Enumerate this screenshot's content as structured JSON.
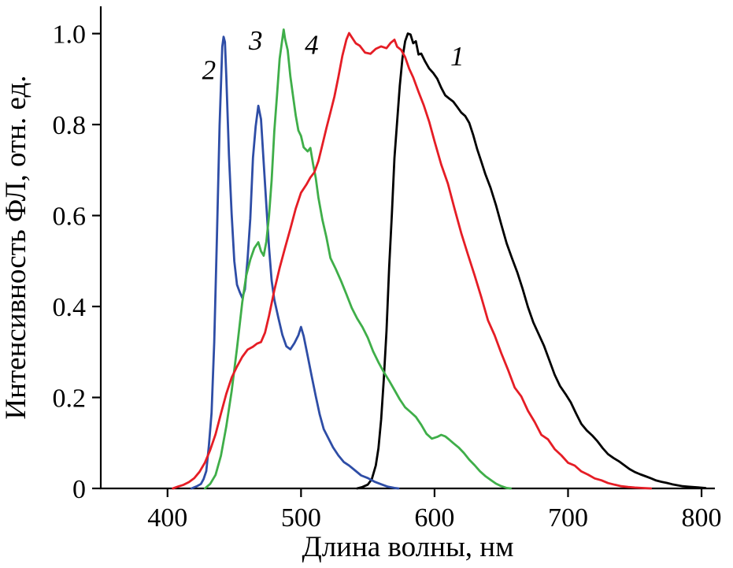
{
  "figure": {
    "description": "Photoluminescence spectra figure with four numbered curves",
    "background": "#ffffff",
    "axis_color": "#000000"
  },
  "chart_data": {
    "type": "line",
    "title": "",
    "xlabel": "Длина волны, нм",
    "ylabel": "Интенсивность ФЛ, отн. ед.",
    "xlim": [
      350,
      810
    ],
    "ylim": [
      0,
      1.06
    ],
    "grid": false,
    "legend": "inline italic numbers near curve peaks",
    "x_ticks": [
      400,
      500,
      600,
      700,
      800
    ],
    "x_tick_labels": [
      "400",
      "500",
      "600",
      "700",
      "800"
    ],
    "y_ticks": [
      0,
      0.2,
      0.4,
      0.6,
      0.8,
      1.0
    ],
    "y_tick_labels": [
      "0",
      "0.2",
      "0.4",
      "0.6",
      "0.8",
      "1.0"
    ],
    "series": [
      {
        "name": "1",
        "color": "#000000",
        "label": "1",
        "label_pos": [
          617,
          0.93
        ],
        "points": [
          [
            542,
            0
          ],
          [
            546,
            0.003
          ],
          [
            550,
            0.008
          ],
          [
            553,
            0.02
          ],
          [
            556,
            0.05
          ],
          [
            558,
            0.09
          ],
          [
            560,
            0.15
          ],
          [
            562,
            0.24
          ],
          [
            564,
            0.35
          ],
          [
            566,
            0.48
          ],
          [
            568,
            0.61
          ],
          [
            570,
            0.72
          ],
          [
            572,
            0.81
          ],
          [
            574,
            0.885
          ],
          [
            576,
            0.945
          ],
          [
            578,
            0.985
          ],
          [
            580,
            1.0
          ],
          [
            582,
            0.995
          ],
          [
            584,
            0.985
          ],
          [
            586,
            0.975
          ],
          [
            588,
            0.962
          ],
          [
            590,
            0.95
          ],
          [
            593,
            0.936
          ],
          [
            596,
            0.922
          ],
          [
            599,
            0.908
          ],
          [
            602,
            0.896
          ],
          [
            605,
            0.884
          ],
          [
            608,
            0.872
          ],
          [
            611,
            0.861
          ],
          [
            614,
            0.851
          ],
          [
            617,
            0.842
          ],
          [
            620,
            0.83
          ],
          [
            623,
            0.815
          ],
          [
            626,
            0.795
          ],
          [
            629,
            0.772
          ],
          [
            632,
            0.746
          ],
          [
            635,
            0.718
          ],
          [
            638,
            0.69
          ],
          [
            642,
            0.653
          ],
          [
            646,
            0.615
          ],
          [
            650,
            0.578
          ],
          [
            654,
            0.54
          ],
          [
            658,
            0.503
          ],
          [
            662,
            0.467
          ],
          [
            666,
            0.432
          ],
          [
            670,
            0.398
          ],
          [
            674,
            0.366
          ],
          [
            678,
            0.335
          ],
          [
            682,
            0.305
          ],
          [
            686,
            0.277
          ],
          [
            690,
            0.251
          ],
          [
            694,
            0.226
          ],
          [
            698,
            0.203
          ],
          [
            702,
            0.182
          ],
          [
            706,
            0.162
          ],
          [
            710,
            0.144
          ],
          [
            714,
            0.128
          ],
          [
            718,
            0.113
          ],
          [
            722,
            0.1
          ],
          [
            726,
            0.088
          ],
          [
            730,
            0.077
          ],
          [
            734,
            0.067
          ],
          [
            738,
            0.058
          ],
          [
            742,
            0.05
          ],
          [
            746,
            0.043
          ],
          [
            750,
            0.037
          ],
          [
            754,
            0.031
          ],
          [
            758,
            0.026
          ],
          [
            762,
            0.022
          ],
          [
            766,
            0.018
          ],
          [
            770,
            0.015
          ],
          [
            774,
            0.012
          ],
          [
            778,
            0.009
          ],
          [
            782,
            0.007
          ],
          [
            786,
            0.005
          ],
          [
            790,
            0.004
          ],
          [
            794,
            0.003
          ],
          [
            798,
            0.002
          ],
          [
            803,
            0.001
          ]
        ]
      },
      {
        "name": "2",
        "color": "#2e4da6",
        "label": "2",
        "label_pos": [
          431,
          0.9
        ],
        "points": [
          [
            418,
            0
          ],
          [
            422,
            0.005
          ],
          [
            425,
            0.01
          ],
          [
            427,
            0.02
          ],
          [
            429,
            0.04
          ],
          [
            431,
            0.09
          ],
          [
            433,
            0.17
          ],
          [
            435,
            0.32
          ],
          [
            437,
            0.55
          ],
          [
            439,
            0.8
          ],
          [
            441,
            0.97
          ],
          [
            442,
            1.0
          ],
          [
            443,
            0.98
          ],
          [
            444,
            0.9
          ],
          [
            446,
            0.74
          ],
          [
            448,
            0.6
          ],
          [
            450,
            0.5
          ],
          [
            452,
            0.45
          ],
          [
            454,
            0.43
          ],
          [
            456,
            0.42
          ],
          [
            458,
            0.44
          ],
          [
            460,
            0.5
          ],
          [
            462,
            0.6
          ],
          [
            464,
            0.72
          ],
          [
            466,
            0.8
          ],
          [
            468,
            0.84
          ],
          [
            470,
            0.81
          ],
          [
            472,
            0.72
          ],
          [
            474,
            0.62
          ],
          [
            476,
            0.53
          ],
          [
            478,
            0.46
          ],
          [
            480,
            0.41
          ],
          [
            483,
            0.37
          ],
          [
            486,
            0.34
          ],
          [
            489,
            0.32
          ],
          [
            492,
            0.31
          ],
          [
            495,
            0.32
          ],
          [
            498,
            0.34
          ],
          [
            500,
            0.35
          ],
          [
            502,
            0.34
          ],
          [
            505,
            0.3
          ],
          [
            508,
            0.25
          ],
          [
            511,
            0.2
          ],
          [
            514,
            0.16
          ],
          [
            517,
            0.13
          ],
          [
            520,
            0.11
          ],
          [
            524,
            0.09
          ],
          [
            528,
            0.075
          ],
          [
            532,
            0.06
          ],
          [
            536,
            0.05
          ],
          [
            540,
            0.04
          ],
          [
            545,
            0.03
          ],
          [
            550,
            0.022
          ],
          [
            555,
            0.015
          ],
          [
            560,
            0.009
          ],
          [
            565,
            0.004
          ],
          [
            570,
            0.001
          ],
          [
            573,
            0
          ]
        ]
      },
      {
        "name": "3",
        "color": "#3fae49",
        "label": "3",
        "label_pos": [
          466,
          0.965
        ],
        "points": [
          [
            428,
            0
          ],
          [
            432,
            0.01
          ],
          [
            436,
            0.03
          ],
          [
            440,
            0.07
          ],
          [
            444,
            0.13
          ],
          [
            448,
            0.21
          ],
          [
            452,
            0.31
          ],
          [
            456,
            0.41
          ],
          [
            459,
            0.47
          ],
          [
            462,
            0.51
          ],
          [
            465,
            0.535
          ],
          [
            468,
            0.54
          ],
          [
            470,
            0.52
          ],
          [
            472,
            0.515
          ],
          [
            474,
            0.54
          ],
          [
            476,
            0.6
          ],
          [
            478,
            0.68
          ],
          [
            480,
            0.78
          ],
          [
            482,
            0.87
          ],
          [
            484,
            0.94
          ],
          [
            486,
            0.99
          ],
          [
            487,
            1.0
          ],
          [
            488,
            0.99
          ],
          [
            490,
            0.96
          ],
          [
            492,
            0.91
          ],
          [
            494,
            0.86
          ],
          [
            496,
            0.82
          ],
          [
            498,
            0.79
          ],
          [
            500,
            0.77
          ],
          [
            502,
            0.755
          ],
          [
            505,
            0.75
          ],
          [
            507,
            0.74
          ],
          [
            509,
            0.72
          ],
          [
            511,
            0.68
          ],
          [
            513,
            0.64
          ],
          [
            516,
            0.59
          ],
          [
            519,
            0.55
          ],
          [
            522,
            0.51
          ],
          [
            526,
            0.48
          ],
          [
            530,
            0.45
          ],
          [
            534,
            0.425
          ],
          [
            538,
            0.4
          ],
          [
            542,
            0.375
          ],
          [
            546,
            0.35
          ],
          [
            550,
            0.325
          ],
          [
            554,
            0.3
          ],
          [
            558,
            0.28
          ],
          [
            562,
            0.255
          ],
          [
            566,
            0.23
          ],
          [
            570,
            0.21
          ],
          [
            574,
            0.195
          ],
          [
            578,
            0.18
          ],
          [
            582,
            0.165
          ],
          [
            586,
            0.15
          ],
          [
            590,
            0.135
          ],
          [
            594,
            0.12
          ],
          [
            598,
            0.11
          ],
          [
            602,
            0.11
          ],
          [
            605,
            0.12
          ],
          [
            608,
            0.12
          ],
          [
            611,
            0.11
          ],
          [
            614,
            0.1
          ],
          [
            618,
            0.09
          ],
          [
            622,
            0.075
          ],
          [
            626,
            0.06
          ],
          [
            630,
            0.05
          ],
          [
            634,
            0.038
          ],
          [
            638,
            0.027
          ],
          [
            642,
            0.018
          ],
          [
            646,
            0.01
          ],
          [
            650,
            0.005
          ],
          [
            654,
            0.001
          ],
          [
            657,
            0
          ]
        ]
      },
      {
        "name": "4",
        "color": "#e51d25",
        "label": "4",
        "label_pos": [
          508,
          0.955
        ],
        "points": [
          [
            404,
            0
          ],
          [
            408,
            0.004
          ],
          [
            412,
            0.008
          ],
          [
            416,
            0.014
          ],
          [
            420,
            0.022
          ],
          [
            424,
            0.035
          ],
          [
            428,
            0.055
          ],
          [
            432,
            0.085
          ],
          [
            436,
            0.12
          ],
          [
            440,
            0.16
          ],
          [
            444,
            0.2
          ],
          [
            448,
            0.24
          ],
          [
            452,
            0.27
          ],
          [
            456,
            0.29
          ],
          [
            460,
            0.3
          ],
          [
            464,
            0.305
          ],
          [
            467,
            0.31
          ],
          [
            470,
            0.32
          ],
          [
            473,
            0.345
          ],
          [
            476,
            0.38
          ],
          [
            480,
            0.43
          ],
          [
            484,
            0.48
          ],
          [
            488,
            0.53
          ],
          [
            492,
            0.575
          ],
          [
            496,
            0.615
          ],
          [
            500,
            0.645
          ],
          [
            504,
            0.665
          ],
          [
            507,
            0.675
          ],
          [
            510,
            0.69
          ],
          [
            513,
            0.72
          ],
          [
            516,
            0.755
          ],
          [
            519,
            0.79
          ],
          [
            522,
            0.83
          ],
          [
            525,
            0.87
          ],
          [
            528,
            0.91
          ],
          [
            531,
            0.95
          ],
          [
            534,
            0.985
          ],
          [
            536,
            1.0
          ],
          [
            538,
            0.995
          ],
          [
            541,
            0.985
          ],
          [
            544,
            0.975
          ],
          [
            548,
            0.965
          ],
          [
            552,
            0.96
          ],
          [
            556,
            0.965
          ],
          [
            560,
            0.97
          ],
          [
            564,
            0.972
          ],
          [
            567,
            0.975
          ],
          [
            570,
            0.98
          ],
          [
            572,
            0.975
          ],
          [
            575,
            0.965
          ],
          [
            578,
            0.95
          ],
          [
            581,
            0.93
          ],
          [
            584,
            0.91
          ],
          [
            588,
            0.88
          ],
          [
            592,
            0.845
          ],
          [
            596,
            0.805
          ],
          [
            600,
            0.765
          ],
          [
            605,
            0.715
          ],
          [
            610,
            0.665
          ],
          [
            615,
            0.615
          ],
          [
            620,
            0.565
          ],
          [
            625,
            0.515
          ],
          [
            630,
            0.465
          ],
          [
            635,
            0.42
          ],
          [
            640,
            0.375
          ],
          [
            645,
            0.335
          ],
          [
            650,
            0.295
          ],
          [
            655,
            0.26
          ],
          [
            660,
            0.228
          ],
          [
            665,
            0.198
          ],
          [
            670,
            0.17
          ],
          [
            675,
            0.145
          ],
          [
            680,
            0.123
          ],
          [
            685,
            0.104
          ],
          [
            690,
            0.087
          ],
          [
            695,
            0.072
          ],
          [
            700,
            0.059
          ],
          [
            705,
            0.048
          ],
          [
            710,
            0.038
          ],
          [
            715,
            0.03
          ],
          [
            720,
            0.023
          ],
          [
            725,
            0.017
          ],
          [
            730,
            0.012
          ],
          [
            735,
            0.008
          ],
          [
            740,
            0.005
          ],
          [
            745,
            0.003
          ],
          [
            750,
            0.002
          ],
          [
            755,
            0.001
          ],
          [
            762,
            0
          ]
        ]
      }
    ]
  }
}
